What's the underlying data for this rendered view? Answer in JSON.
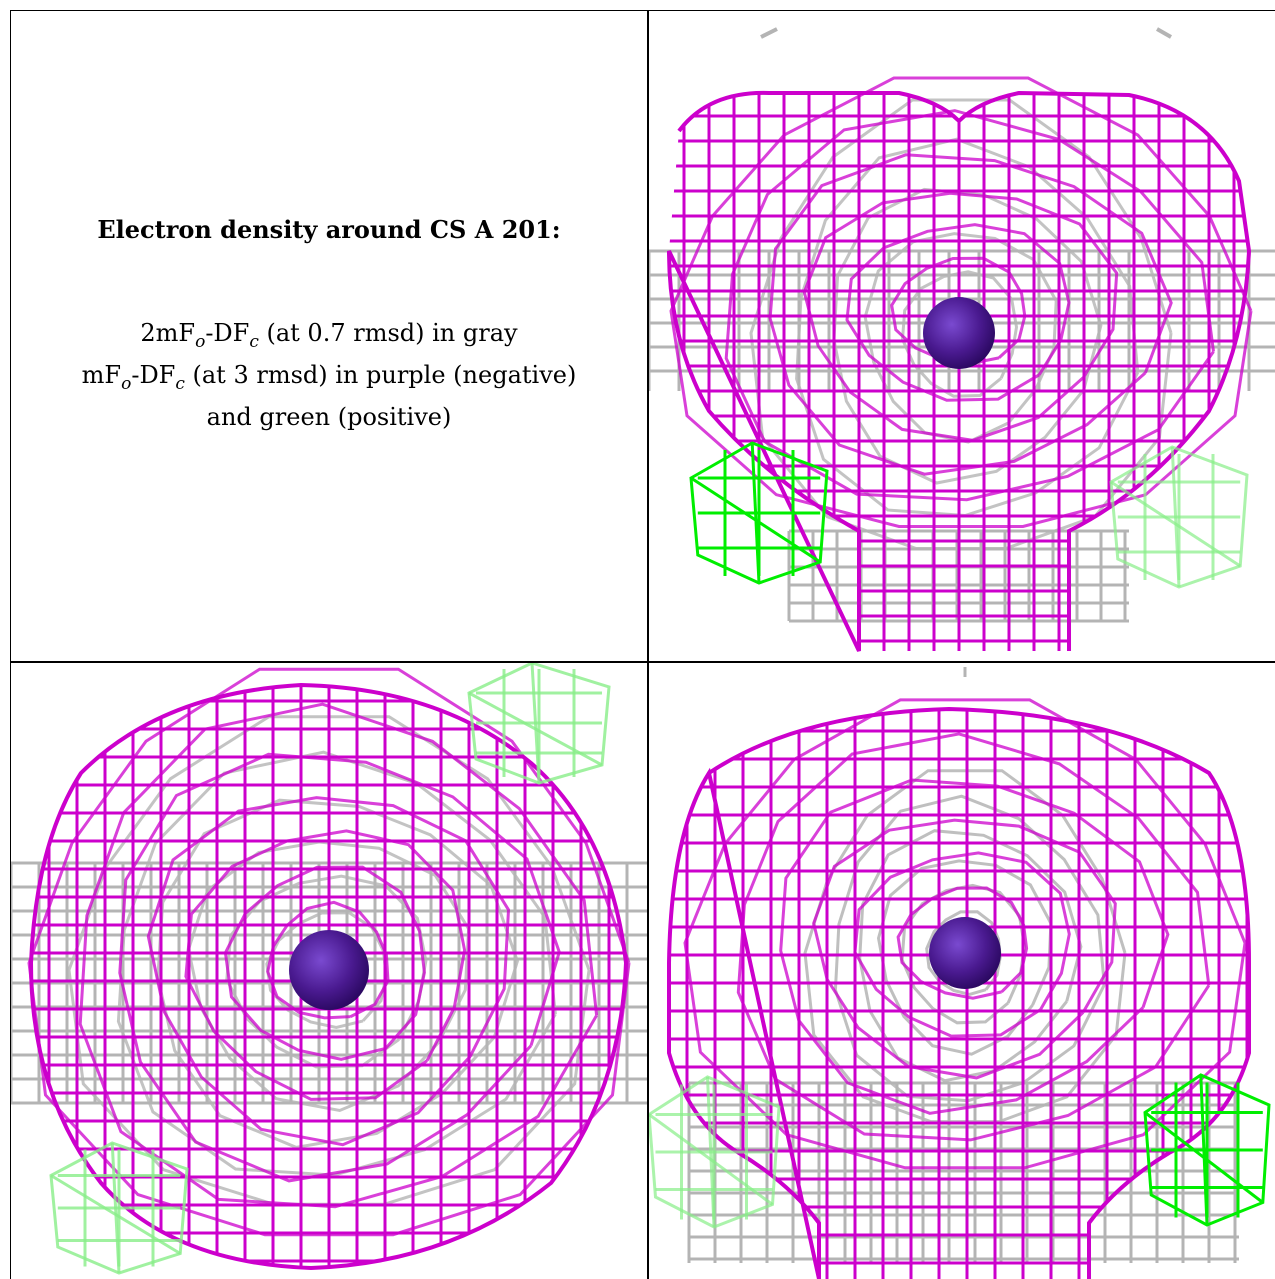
{
  "caption": {
    "title": "Electron density around CS A 201:",
    "map1_name": "2mF",
    "map1_sub_o": "o",
    "map1_mid": "-DF",
    "map1_sub_c": "c",
    "map1_rest": " (at 0.7 rmsd) in gray",
    "map2_name": "mF",
    "map2_sub_o": "o",
    "map2_mid": "-DF",
    "map2_sub_c": "c",
    "map2_rest": " (at 3 rmsd) in purple (negative)",
    "line3": "and green (positive)"
  },
  "colors": {
    "negative_mesh": "#cc00cc",
    "positive_mesh": "#00ee00",
    "positive_mesh_faded": "#88ee88",
    "gray_mesh": "#b4b4b4",
    "atom": "#4a1a90"
  },
  "views": [
    {
      "name": "view-top-right"
    },
    {
      "name": "view-bottom-left"
    },
    {
      "name": "view-bottom-right"
    }
  ]
}
